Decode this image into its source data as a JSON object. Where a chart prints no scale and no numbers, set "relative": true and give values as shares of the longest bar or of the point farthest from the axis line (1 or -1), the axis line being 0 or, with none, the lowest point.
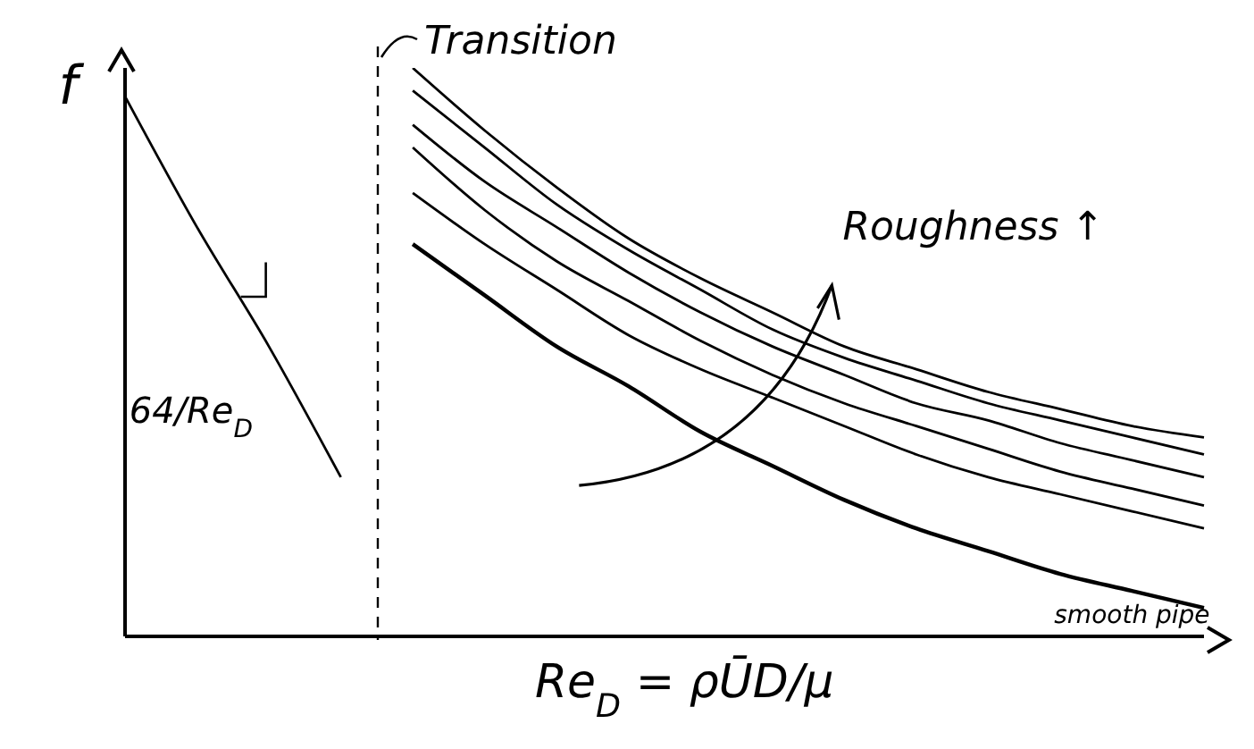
{
  "chart_data": {
    "type": "line",
    "relative": true,
    "xlabel": "Re$_{D}$ = ρŪD/μ",
    "ylabel": "f",
    "categories": [
      null,
      null,
      null,
      null,
      null,
      null,
      null,
      null,
      null,
      null,
      null,
      null,
      null,
      null,
      null,
      null
    ],
    "series": [
      {
        "color": "#000000",
        "values": [
          0.95,
          0.72,
          0.51,
          0.28,
          null,
          null,
          null,
          null,
          null,
          null,
          null,
          null,
          null,
          null,
          null,
          null
        ]
      },
      {
        "color": "#000000",
        "values": [
          null,
          null,
          null,
          null,
          1.0,
          0.89,
          0.79,
          0.7,
          0.63,
          0.57,
          0.51,
          0.47,
          0.43,
          0.4,
          0.37,
          0.35
        ]
      },
      {
        "color": "#000000",
        "values": [
          null,
          null,
          null,
          null,
          0.96,
          0.86,
          0.76,
          0.68,
          0.61,
          0.54,
          0.49,
          0.45,
          0.41,
          0.38,
          0.35,
          0.32
        ]
      },
      {
        "color": "#000000",
        "values": [
          null,
          null,
          null,
          null,
          0.9,
          0.8,
          0.72,
          0.64,
          0.57,
          0.51,
          0.46,
          0.41,
          0.38,
          0.34,
          0.31,
          0.28
        ]
      },
      {
        "color": "#000000",
        "values": [
          null,
          null,
          null,
          null,
          0.86,
          0.75,
          0.66,
          0.59,
          0.52,
          0.46,
          0.41,
          0.37,
          0.33,
          0.29,
          0.26,
          0.23
        ]
      },
      {
        "color": "#000000",
        "values": [
          null,
          null,
          null,
          null,
          0.78,
          0.69,
          0.61,
          0.53,
          0.47,
          0.42,
          0.37,
          0.32,
          0.28,
          0.25,
          0.22,
          0.19
        ]
      },
      {
        "name": "smooth pipe",
        "color": "#000000",
        "values": [
          null,
          null,
          null,
          null,
          0.69,
          0.6,
          0.51,
          0.44,
          0.36,
          0.3,
          0.24,
          0.19,
          0.15,
          0.11,
          0.08,
          0.05
        ]
      }
    ],
    "annotations": [
      "Transition",
      "Roughness ↑",
      "64/Re$_{D}$"
    ],
    "grid": false,
    "legend": false,
    "tick_labels": false,
    "marker": "none",
    "line_style": "solid"
  }
}
